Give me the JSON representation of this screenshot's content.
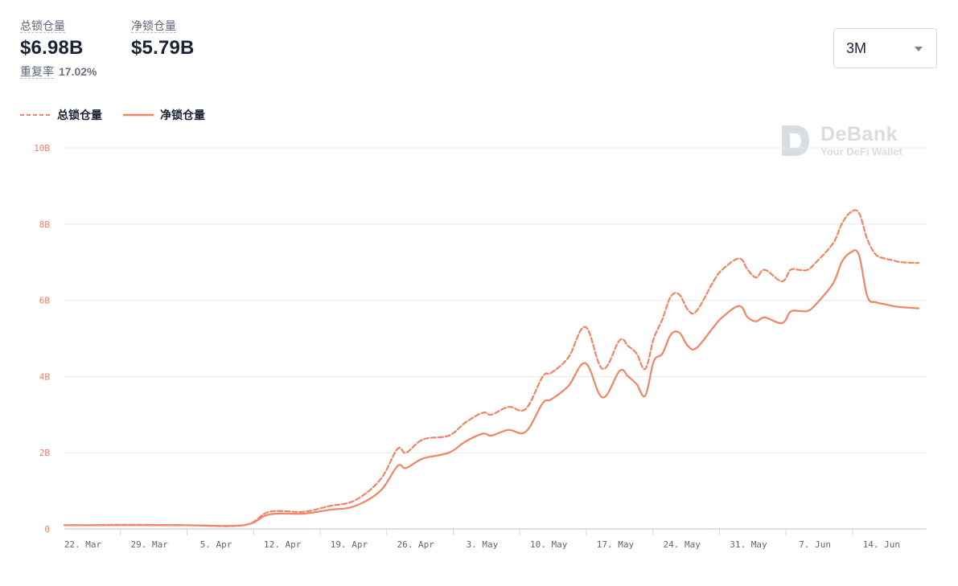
{
  "stats": {
    "total": {
      "label": "总锁仓量",
      "value": "$6.98B"
    },
    "net": {
      "label": "净锁仓量",
      "value": "$5.79B"
    },
    "reuse": {
      "label": "重复率",
      "value": "17.02%"
    }
  },
  "range_select": {
    "value": "3M"
  },
  "watermark": {
    "brand": "DeBank",
    "tagline": "Your DeFi Wallet"
  },
  "colors": {
    "line": "#f08465",
    "grid": "#e6e8ec",
    "y_tick": "#e8826b",
    "x_tick": "#5f6672",
    "axis": "#cfd6e6"
  },
  "chart_data": {
    "type": "line",
    "x": [
      0,
      3,
      7,
      14,
      21,
      24,
      28,
      31,
      34,
      37,
      39,
      40,
      42,
      45,
      47,
      49,
      50,
      52,
      54,
      56,
      57,
      59,
      61,
      63,
      65,
      66,
      67,
      68,
      69,
      70,
      71,
      72,
      73,
      74,
      76,
      77,
      79,
      80,
      81,
      82,
      84,
      85,
      86,
      87,
      88,
      90,
      91,
      92,
      93,
      94,
      95,
      96,
      97,
      98,
      100
    ],
    "x_ticks": [
      {
        "x": 0,
        "label": "22. Mar"
      },
      {
        "x": 7,
        "label": "29. Mar"
      },
      {
        "x": 14,
        "label": "5. Apr"
      },
      {
        "x": 21,
        "label": "12. Apr"
      },
      {
        "x": 28,
        "label": "19. Apr"
      },
      {
        "x": 35,
        "label": "26. Apr"
      },
      {
        "x": 42,
        "label": "3. May"
      },
      {
        "x": 49,
        "label": "10. May"
      },
      {
        "x": 56,
        "label": "17. May"
      },
      {
        "x": 63,
        "label": "24. May"
      },
      {
        "x": 70,
        "label": "31. May"
      },
      {
        "x": 77,
        "label": "7. Jun"
      },
      {
        "x": 84,
        "label": "14. Jun"
      }
    ],
    "y_ticks": [
      {
        "value": 0,
        "label": "0"
      },
      {
        "value": 2,
        "label": "2B"
      },
      {
        "value": 4,
        "label": "4B"
      },
      {
        "value": 6,
        "label": "6B"
      },
      {
        "value": 8,
        "label": "8B"
      },
      {
        "value": 10,
        "label": "10B"
      }
    ],
    "ylim": [
      0,
      10
    ],
    "series": [
      {
        "name": "总锁仓量",
        "style": "dashed",
        "values": [
          0.1,
          0.1,
          0.11,
          0.1,
          0.1,
          0.45,
          0.45,
          0.6,
          0.75,
          1.3,
          2.1,
          2.0,
          2.35,
          2.45,
          2.8,
          3.05,
          3.0,
          3.2,
          3.15,
          4.0,
          4.1,
          4.5,
          5.3,
          4.2,
          4.95,
          4.8,
          4.6,
          4.2,
          5.0,
          5.5,
          6.1,
          6.15,
          5.75,
          5.72,
          6.5,
          6.8,
          7.1,
          6.8,
          6.6,
          6.8,
          6.5,
          6.8,
          6.8,
          6.8,
          7.0,
          7.5,
          8.0,
          8.3,
          8.3,
          7.6,
          7.2,
          7.1,
          7.05,
          7.0,
          6.98
        ]
      },
      {
        "name": "净锁仓量",
        "style": "solid",
        "values": [
          0.1,
          0.1,
          0.1,
          0.1,
          0.1,
          0.38,
          0.4,
          0.5,
          0.6,
          1.0,
          1.65,
          1.6,
          1.85,
          2.0,
          2.3,
          2.5,
          2.45,
          2.6,
          2.55,
          3.3,
          3.4,
          3.75,
          4.35,
          3.45,
          4.15,
          4.0,
          3.8,
          3.5,
          4.4,
          4.6,
          5.1,
          5.15,
          4.8,
          4.75,
          5.3,
          5.55,
          5.85,
          5.55,
          5.45,
          5.55,
          5.4,
          5.7,
          5.72,
          5.72,
          5.9,
          6.45,
          7.0,
          7.25,
          7.2,
          6.1,
          5.95,
          5.9,
          5.85,
          5.82,
          5.79
        ]
      }
    ]
  }
}
